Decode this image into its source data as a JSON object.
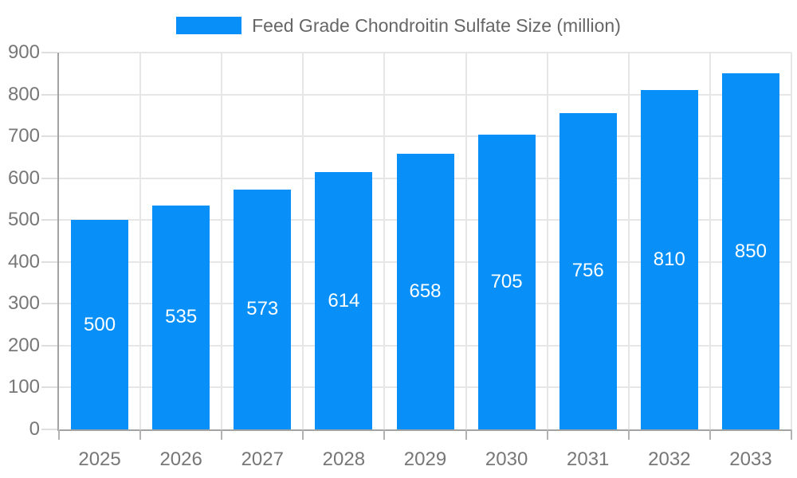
{
  "colors": {
    "bar": "#0890F8",
    "legend_text": "#666666",
    "tick_label": "#777777",
    "axis_line": "#a3a3a3",
    "grid_line": "#e6e6e6",
    "x_tick": "#b3b3b3",
    "y_tick": "#dedede",
    "value_label": "#ffffff",
    "background": "#ffffff"
  },
  "chart_data": {
    "type": "bar",
    "title": "",
    "xlabel": "",
    "ylabel": "",
    "categories": [
      "2025",
      "2026",
      "2027",
      "2028",
      "2029",
      "2030",
      "2031",
      "2032",
      "2033"
    ],
    "series": [
      {
        "name": "Feed Grade Chondroitin Sulfate Size (million)",
        "values": [
          500,
          535,
          573,
          614,
          658,
          705,
          756,
          810,
          850
        ]
      }
    ],
    "ylim": [
      0,
      900
    ],
    "ytick_step": 100,
    "grid": true,
    "legend_position": "top",
    "value_labels": "inside-center"
  }
}
